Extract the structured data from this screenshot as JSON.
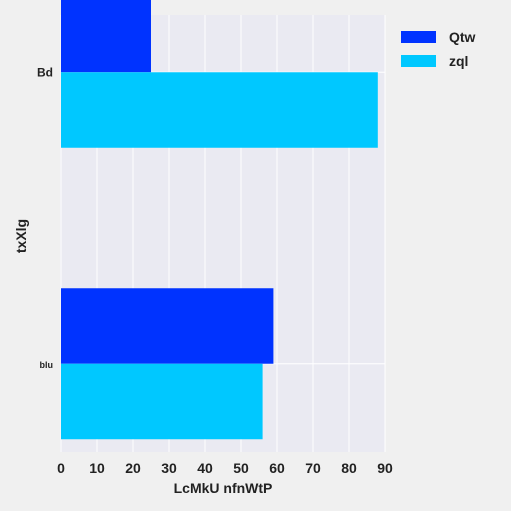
{
  "chart_data": {
    "type": "bar",
    "orientation": "horizontal",
    "xlabel": "LcMkU nfnWtP",
    "ylabel": "txXlg",
    "categories": [
      "Bd",
      "blu"
    ],
    "series": [
      {
        "name": "Qtw",
        "values": [
          25,
          59
        ],
        "color": "#0033ff"
      },
      {
        "name": "zql",
        "values": [
          88,
          56
        ],
        "color": "#00c8ff"
      }
    ],
    "xlim": [
      0,
      90
    ],
    "xticks": [
      0,
      10,
      20,
      30,
      40,
      50,
      60,
      70,
      80,
      90
    ],
    "grid": true,
    "legend_position": "top-right",
    "plot_background": "#eaeaf2",
    "figure_background": "#f0f0f0"
  }
}
